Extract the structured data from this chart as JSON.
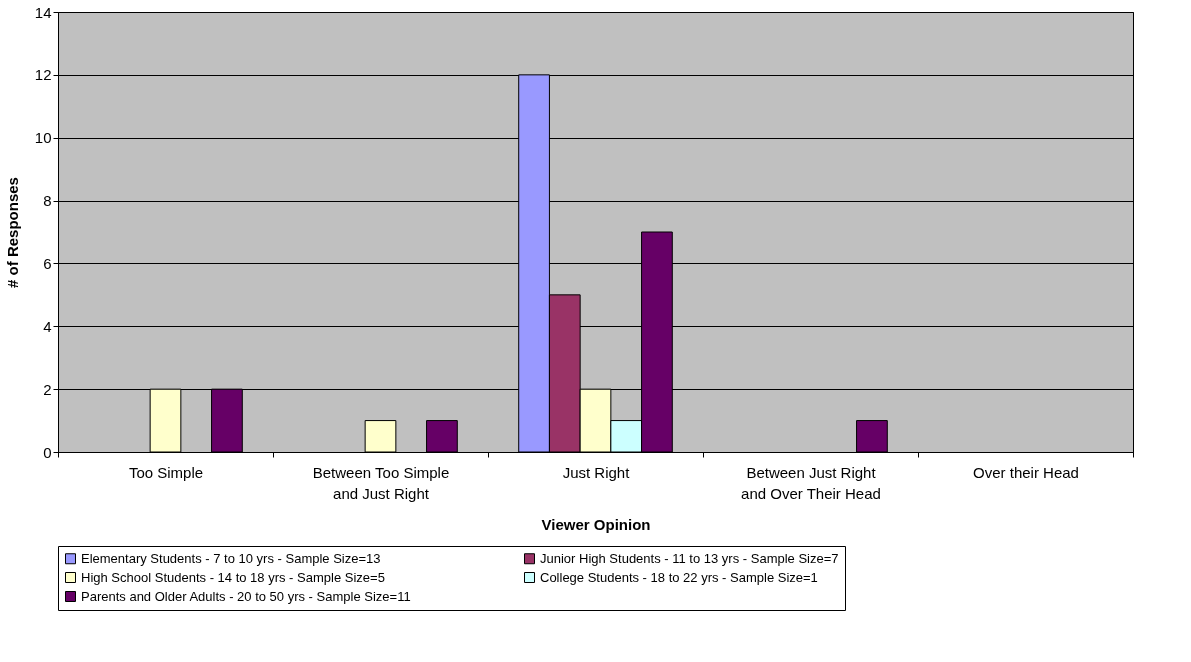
{
  "chart_data": {
    "type": "bar",
    "xlabel": "Viewer Opinion",
    "ylabel": "# of Responses",
    "categories": [
      "Too Simple",
      "Between Too Simple\nand Just Right",
      "Just Right",
      "Between Just Right\nand Over Their Head",
      "Over their Head"
    ],
    "series": [
      {
        "name": "Elementary Students - 7 to 10 yrs - Sample Size=13",
        "color": "#9999ff",
        "values": [
          0,
          0,
          12,
          0,
          0
        ]
      },
      {
        "name": "Junior High Students - 11 to 13 yrs - Sample Size=7",
        "color": "#993366",
        "values": [
          0,
          0,
          5,
          0,
          0
        ]
      },
      {
        "name": "High School Students - 14 to 18  yrs - Sample Size=5",
        "color": "#ffffcc",
        "values": [
          2,
          1,
          2,
          0,
          0
        ]
      },
      {
        "name": "College Students - 18 to 22 yrs - Sample Size=1",
        "color": "#ccffff",
        "values": [
          0,
          0,
          1,
          0,
          0
        ]
      },
      {
        "name": "Parents and Older Adults - 20 to 50 yrs - Sample Size=11",
        "color": "#660066",
        "values": [
          2,
          1,
          7,
          1,
          0
        ]
      }
    ],
    "ylim": [
      0,
      14
    ],
    "yticks": [
      0,
      2,
      4,
      6,
      8,
      10,
      12,
      14
    ],
    "grid": "y",
    "legend": "bottom"
  }
}
